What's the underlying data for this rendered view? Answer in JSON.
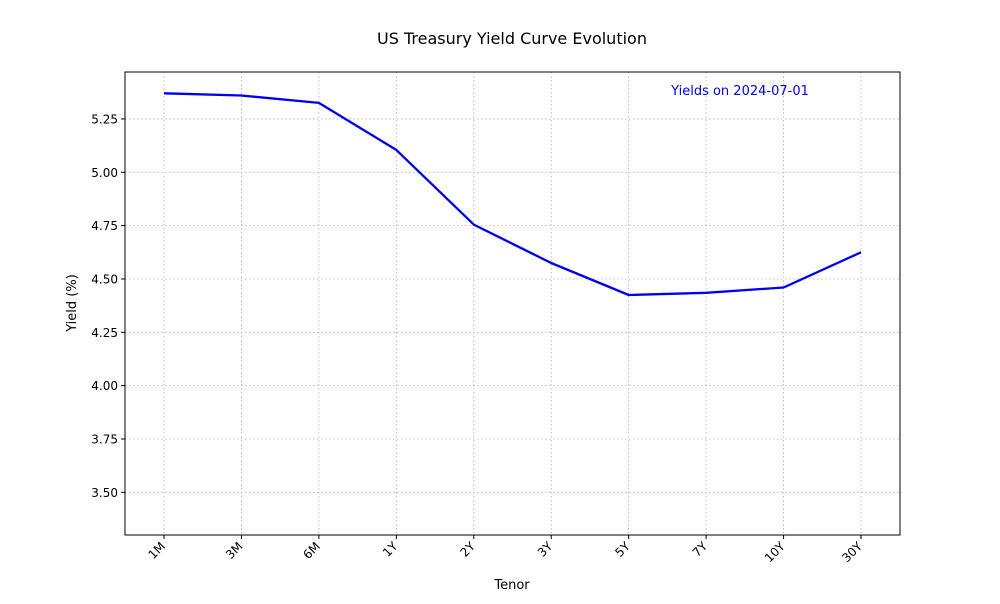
{
  "chart_data": {
    "type": "line",
    "title": "US Treasury Yield Curve Evolution",
    "xlabel": "Tenor",
    "ylabel": "Yield (%)",
    "annotation": "Yields on 2024-07-01",
    "categories": [
      "1M",
      "3M",
      "6M",
      "1Y",
      "2Y",
      "3Y",
      "5Y",
      "7Y",
      "10Y",
      "30Y"
    ],
    "series": [
      {
        "values": [
          5.37,
          5.36,
          5.325,
          5.105,
          4.755,
          4.575,
          4.425,
          4.435,
          4.46,
          4.625
        ]
      }
    ],
    "ylim": [
      3.3,
      5.47
    ],
    "yticks": [
      3.5,
      3.75,
      4.0,
      4.25,
      4.5,
      4.75,
      5.0,
      5.25
    ],
    "ytick_labels": [
      "3.50",
      "3.75",
      "4.00",
      "4.25",
      "4.50",
      "4.75",
      "5.00",
      "5.25"
    ],
    "grid": true,
    "colors": {
      "line": "#0000ee",
      "annotation": "#0000ee",
      "grid": "#b0b0b0",
      "axes": "#000000"
    }
  }
}
